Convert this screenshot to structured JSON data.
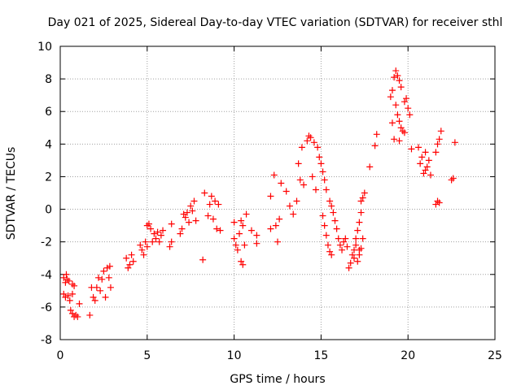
{
  "chart_data": {
    "type": "scatter",
    "title": "Day 021 of 2025, Sidereal Day-to-day VTEC variation (SDTVAR) for receiver sthl",
    "xlabel": "GPS time / hours",
    "ylabel": "SDTVAR / TECUs",
    "xlim": [
      0,
      25
    ],
    "ylim": [
      -8,
      10
    ],
    "xticks": [
      0,
      5,
      10,
      15,
      20,
      25
    ],
    "yticks": [
      -8,
      -6,
      -4,
      -2,
      0,
      2,
      4,
      6,
      8,
      10
    ],
    "grid": true,
    "marker": "+",
    "color": "#ff0000",
    "series": [
      {
        "name": "sthl",
        "points": [
          [
            0.2,
            -4.2
          ],
          [
            0.3,
            -4.5
          ],
          [
            0.35,
            -4.0
          ],
          [
            0.4,
            -4.3
          ],
          [
            0.5,
            -4.4
          ],
          [
            0.2,
            -5.2
          ],
          [
            0.3,
            -5.4
          ],
          [
            0.45,
            -5.3
          ],
          [
            0.55,
            -5.6
          ],
          [
            0.7,
            -5.2
          ],
          [
            0.6,
            -6.2
          ],
          [
            0.7,
            -6.4
          ],
          [
            0.8,
            -6.6
          ],
          [
            0.9,
            -6.5
          ],
          [
            1.0,
            -6.6
          ],
          [
            0.7,
            -4.6
          ],
          [
            0.8,
            -4.7
          ],
          [
            1.1,
            -5.8
          ],
          [
            1.7,
            -6.5
          ],
          [
            1.8,
            -4.8
          ],
          [
            1.9,
            -5.4
          ],
          [
            2.0,
            -5.6
          ],
          [
            2.1,
            -4.8
          ],
          [
            2.2,
            -4.2
          ],
          [
            2.3,
            -5.0
          ],
          [
            2.4,
            -4.3
          ],
          [
            2.5,
            -3.8
          ],
          [
            2.6,
            -5.4
          ],
          [
            2.7,
            -3.6
          ],
          [
            2.8,
            -4.2
          ],
          [
            2.85,
            -3.5
          ],
          [
            2.9,
            -4.8
          ],
          [
            3.8,
            -3.0
          ],
          [
            3.9,
            -3.6
          ],
          [
            4.0,
            -3.4
          ],
          [
            4.1,
            -2.8
          ],
          [
            4.2,
            -3.2
          ],
          [
            4.6,
            -2.2
          ],
          [
            4.7,
            -2.5
          ],
          [
            4.8,
            -2.8
          ],
          [
            4.9,
            -2.0
          ],
          [
            5.0,
            -2.3
          ],
          [
            5.0,
            -1.0
          ],
          [
            5.1,
            -0.9
          ],
          [
            5.2,
            -1.2
          ],
          [
            5.3,
            -2.0
          ],
          [
            5.4,
            -1.5
          ],
          [
            5.5,
            -1.8
          ],
          [
            5.6,
            -1.4
          ],
          [
            5.7,
            -2.0
          ],
          [
            5.8,
            -1.6
          ],
          [
            5.9,
            -1.3
          ],
          [
            6.3,
            -2.3
          ],
          [
            6.4,
            -0.9
          ],
          [
            6.4,
            -2.0
          ],
          [
            6.9,
            -1.5
          ],
          [
            7.0,
            -1.2
          ],
          [
            7.1,
            -0.3
          ],
          [
            7.2,
            -0.5
          ],
          [
            7.3,
            -0.2
          ],
          [
            7.4,
            -0.8
          ],
          [
            7.5,
            0.2
          ],
          [
            7.6,
            -0.1
          ],
          [
            7.7,
            0.5
          ],
          [
            7.8,
            -0.7
          ],
          [
            8.2,
            -3.1
          ],
          [
            8.3,
            1.0
          ],
          [
            8.5,
            -0.4
          ],
          [
            8.6,
            0.3
          ],
          [
            8.7,
            0.8
          ],
          [
            8.8,
            -0.6
          ],
          [
            8.9,
            0.5
          ],
          [
            9.0,
            -1.2
          ],
          [
            9.1,
            0.3
          ],
          [
            9.2,
            -1.3
          ],
          [
            10.0,
            -1.8
          ],
          [
            10.0,
            -0.8
          ],
          [
            10.1,
            -2.2
          ],
          [
            10.2,
            -2.5
          ],
          [
            10.3,
            -1.5
          ],
          [
            10.4,
            -3.2
          ],
          [
            10.5,
            -3.4
          ],
          [
            10.4,
            -0.7
          ],
          [
            10.5,
            -1.0
          ],
          [
            10.6,
            -2.2
          ],
          [
            10.7,
            -0.3
          ],
          [
            11.0,
            -1.3
          ],
          [
            11.3,
            -1.6
          ],
          [
            11.3,
            -2.1
          ],
          [
            12.1,
            -1.2
          ],
          [
            12.1,
            0.8
          ],
          [
            12.3,
            2.1
          ],
          [
            12.4,
            -1.0
          ],
          [
            12.5,
            -2.0
          ],
          [
            12.6,
            -0.6
          ],
          [
            12.7,
            1.6
          ],
          [
            13.0,
            1.1
          ],
          [
            13.2,
            0.2
          ],
          [
            13.4,
            -0.3
          ],
          [
            13.6,
            0.5
          ],
          [
            13.7,
            2.8
          ],
          [
            13.8,
            1.8
          ],
          [
            13.9,
            3.8
          ],
          [
            14.0,
            1.5
          ],
          [
            14.2,
            4.2
          ],
          [
            14.3,
            4.5
          ],
          [
            14.4,
            4.4
          ],
          [
            14.5,
            2.0
          ],
          [
            14.6,
            4.1
          ],
          [
            14.7,
            1.2
          ],
          [
            14.8,
            3.8
          ],
          [
            14.9,
            3.2
          ],
          [
            15.0,
            2.8
          ],
          [
            15.1,
            2.3
          ],
          [
            15.2,
            1.8
          ],
          [
            15.3,
            1.2
          ],
          [
            15.1,
            -0.4
          ],
          [
            15.2,
            -1.0
          ],
          [
            15.3,
            -1.6
          ],
          [
            15.4,
            -2.2
          ],
          [
            15.5,
            -2.6
          ],
          [
            15.6,
            -2.8
          ],
          [
            15.5,
            0.5
          ],
          [
            15.6,
            0.2
          ],
          [
            15.7,
            -0.2
          ],
          [
            15.8,
            -0.7
          ],
          [
            15.9,
            -1.2
          ],
          [
            16.0,
            -1.8
          ],
          [
            16.1,
            -2.2
          ],
          [
            16.2,
            -2.5
          ],
          [
            16.3,
            -2.0
          ],
          [
            16.4,
            -1.8
          ],
          [
            16.5,
            -2.3
          ],
          [
            16.6,
            -3.6
          ],
          [
            16.7,
            -3.3
          ],
          [
            16.8,
            -2.8
          ],
          [
            16.9,
            -2.5
          ],
          [
            17.0,
            -1.8
          ],
          [
            17.1,
            -1.3
          ],
          [
            17.2,
            -0.8
          ],
          [
            17.3,
            -0.2
          ],
          [
            17.4,
            0.7
          ],
          [
            17.3,
            -2.4
          ],
          [
            17.4,
            -1.8
          ],
          [
            17.1,
            -3.2
          ],
          [
            17.2,
            -2.8
          ],
          [
            16.9,
            -3.0
          ],
          [
            17.0,
            -2.2
          ],
          [
            17.2,
            -2.5
          ],
          [
            17.3,
            0.5
          ],
          [
            17.5,
            1.0
          ],
          [
            17.8,
            2.6
          ],
          [
            18.1,
            3.9
          ],
          [
            18.2,
            4.6
          ],
          [
            19.0,
            6.9
          ],
          [
            19.1,
            7.3
          ],
          [
            19.1,
            5.3
          ],
          [
            19.2,
            8.1
          ],
          [
            19.3,
            8.5
          ],
          [
            19.4,
            8.2
          ],
          [
            19.5,
            7.9
          ],
          [
            19.6,
            7.5
          ],
          [
            19.3,
            6.4
          ],
          [
            19.4,
            5.8
          ],
          [
            19.5,
            5.4
          ],
          [
            19.6,
            5.0
          ],
          [
            19.7,
            4.8
          ],
          [
            19.8,
            4.7
          ],
          [
            19.9,
            6.8
          ],
          [
            19.8,
            6.6
          ],
          [
            20.0,
            6.2
          ],
          [
            20.1,
            5.8
          ],
          [
            20.2,
            3.7
          ],
          [
            19.2,
            4.3
          ],
          [
            19.5,
            4.2
          ],
          [
            20.6,
            3.8
          ],
          [
            20.7,
            2.8
          ],
          [
            20.8,
            3.2
          ],
          [
            20.9,
            2.2
          ],
          [
            21.0,
            2.4
          ],
          [
            21.0,
            3.5
          ],
          [
            21.1,
            2.6
          ],
          [
            21.2,
            3.0
          ],
          [
            21.3,
            2.1
          ],
          [
            21.6,
            3.5
          ],
          [
            21.7,
            4.0
          ],
          [
            21.8,
            4.3
          ],
          [
            21.9,
            4.8
          ],
          [
            21.6,
            0.3
          ],
          [
            21.7,
            0.5
          ],
          [
            21.8,
            0.4
          ],
          [
            22.5,
            1.8
          ],
          [
            22.6,
            1.9
          ],
          [
            22.7,
            4.1
          ]
        ]
      }
    ]
  }
}
